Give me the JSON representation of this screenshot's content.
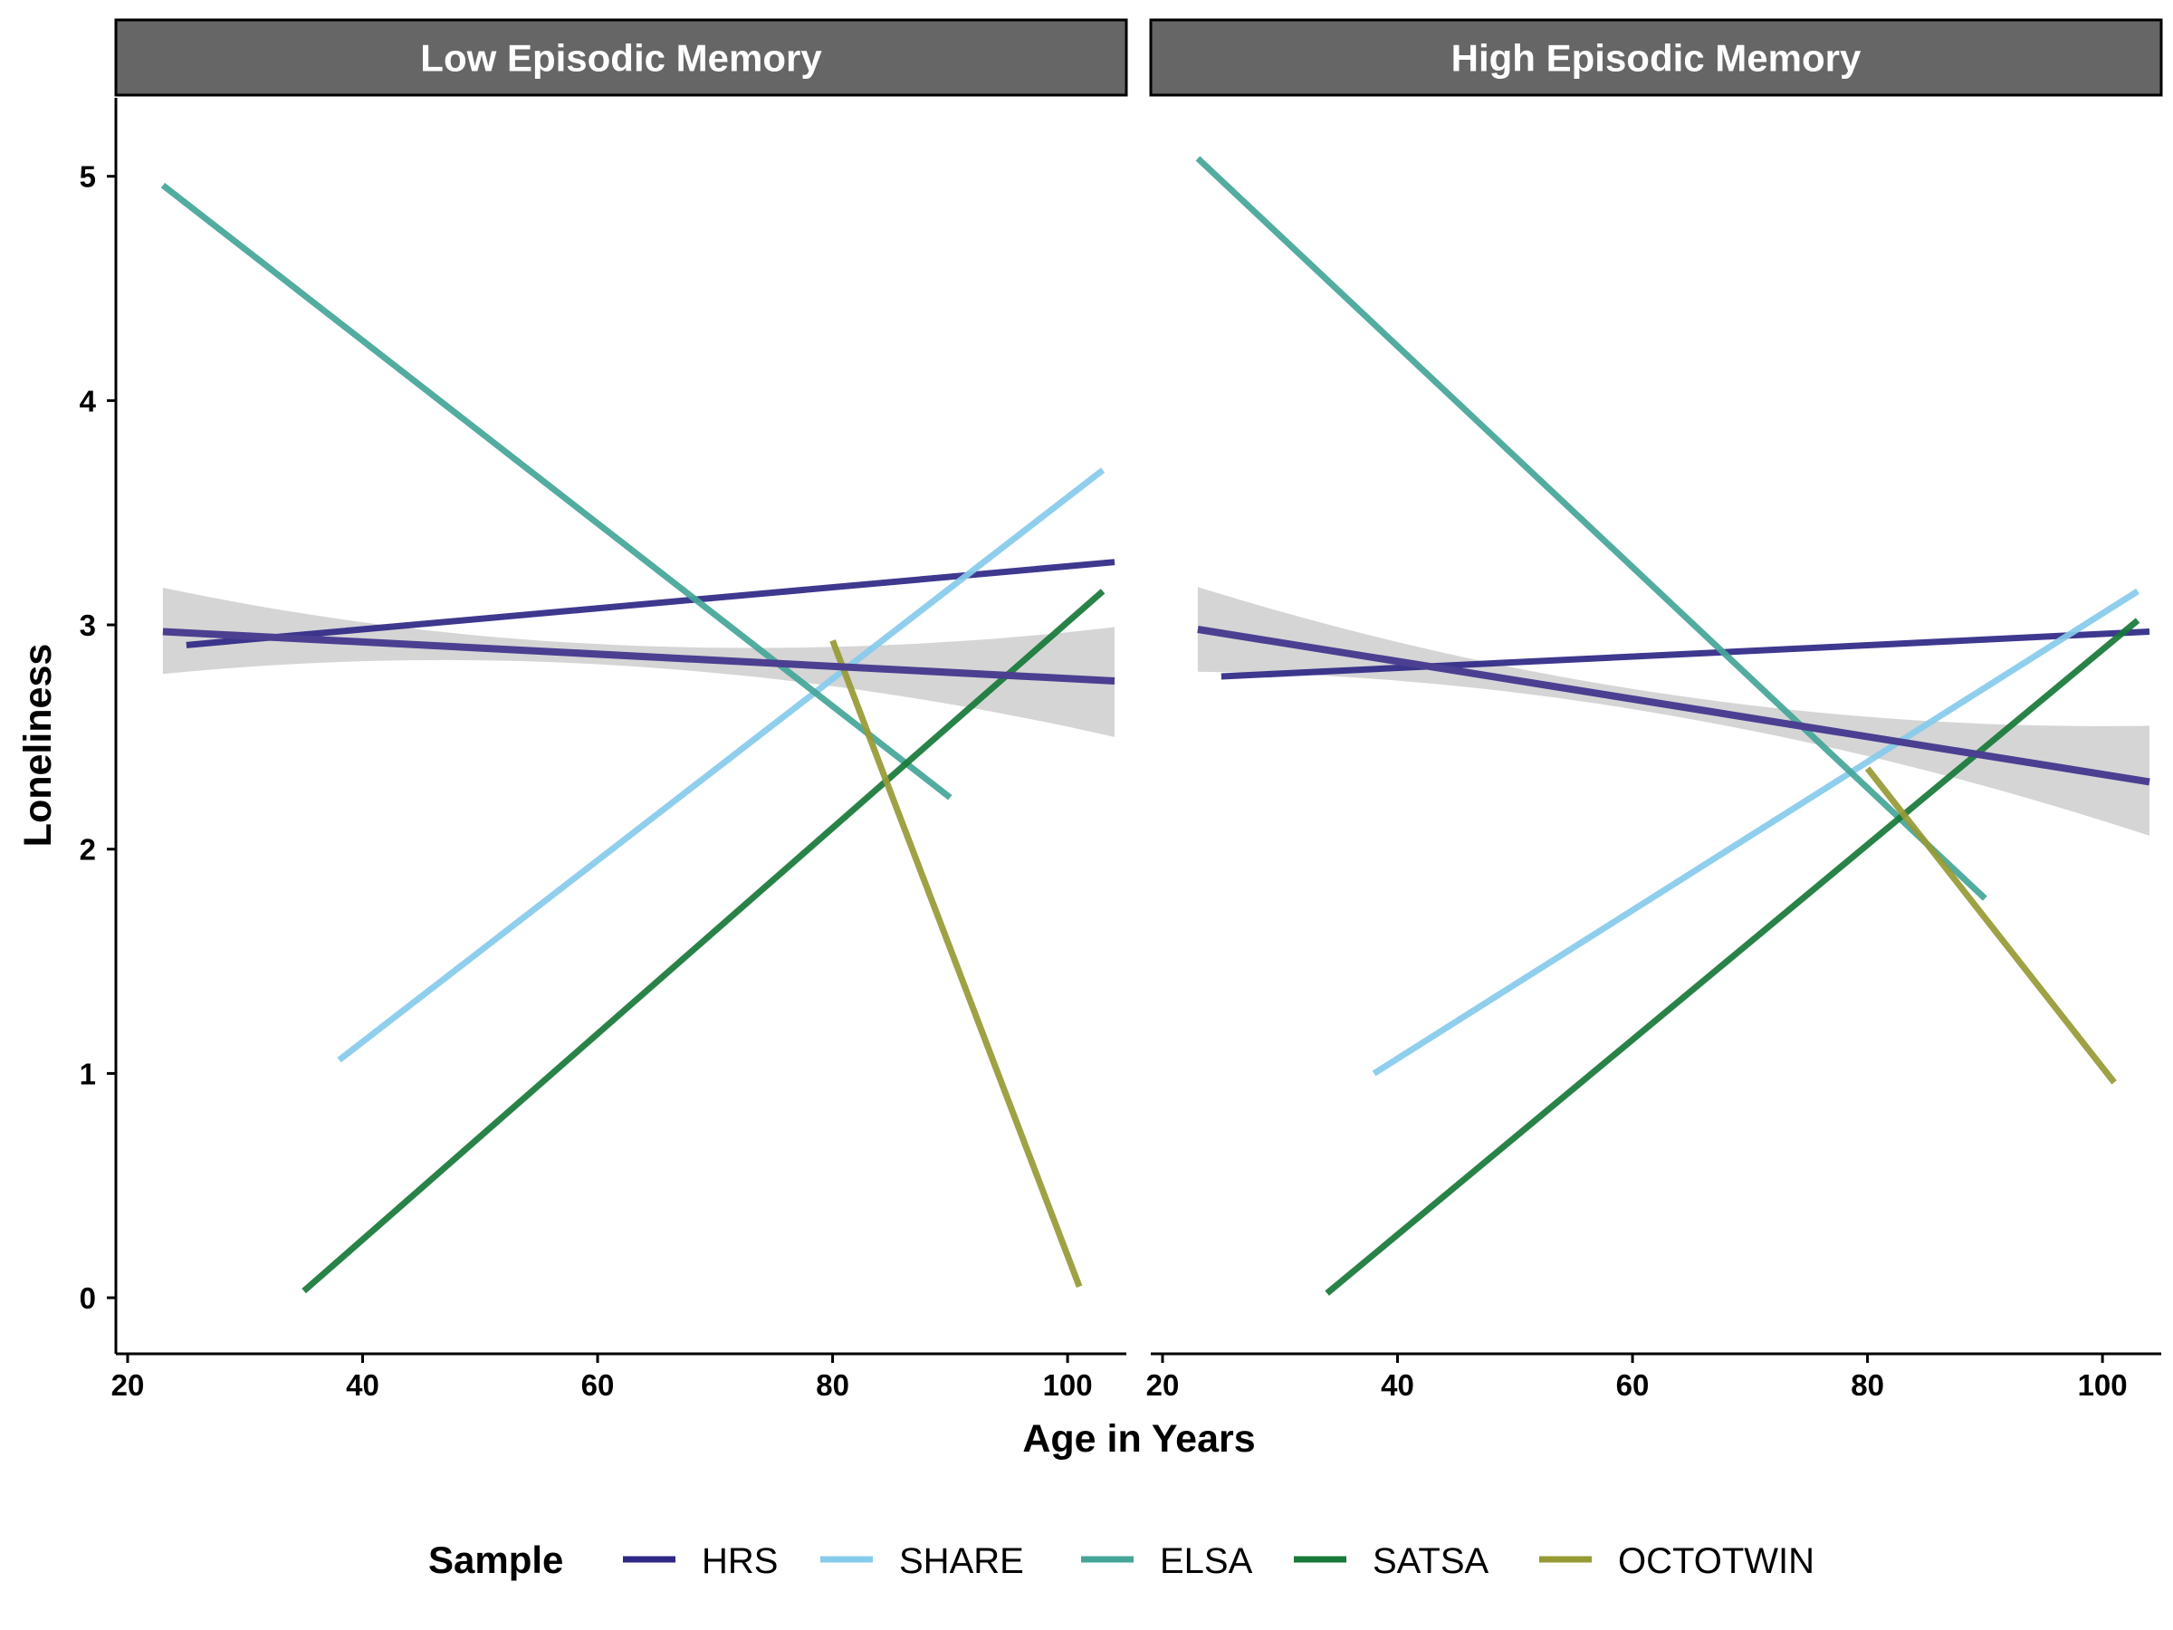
{
  "chart_data": {
    "type": "line",
    "xlabel": "Age in Years",
    "ylabel": "Loneliness",
    "xlim": [
      19,
      105
    ],
    "ylim": [
      -0.25,
      5.35
    ],
    "x_ticks": [
      20,
      40,
      60,
      80,
      100
    ],
    "y_ticks": [
      0,
      1,
      2,
      3,
      4,
      5
    ],
    "grid": false,
    "legend": {
      "title": "Sample",
      "position": "bottom",
      "entries": [
        {
          "name": "HRS",
          "color": "#2e2785"
        },
        {
          "name": "SHARE",
          "color": "#86cbeb"
        },
        {
          "name": "ELSA",
          "color": "#44a598"
        },
        {
          "name": "SATSA",
          "color": "#177838"
        },
        {
          "name": "OCTOTWIN",
          "color": "#969a35"
        }
      ]
    },
    "panels": [
      {
        "title": "Low Episodic Memory",
        "series": [
          {
            "name": "HRS",
            "x": [
              25,
              104
            ],
            "y": [
              2.91,
              3.28
            ]
          },
          {
            "name": "SHARE",
            "x": [
              38,
              103
            ],
            "y": [
              1.06,
              3.69
            ]
          },
          {
            "name": "ELSA",
            "x": [
              23,
              90
            ],
            "y": [
              4.96,
              2.23
            ]
          },
          {
            "name": "SATSA",
            "x": [
              35,
              103
            ],
            "y": [
              0.03,
              3.15
            ]
          },
          {
            "name": "OCTOTWIN",
            "x": [
              80,
              101
            ],
            "y": [
              2.93,
              0.05
            ]
          }
        ],
        "pooled_fit": {
          "x": [
            23,
            104
          ],
          "y": [
            2.97,
            2.75
          ],
          "band_lower": [
            2.71,
            2.5
          ],
          "band_upper": [
            3.24,
            2.99
          ],
          "color": "#4b3f91"
        }
      },
      {
        "title": "High Episodic Memory",
        "series": [
          {
            "name": "HRS",
            "x": [
              25,
              104
            ],
            "y": [
              2.77,
              2.97
            ]
          },
          {
            "name": "SHARE",
            "x": [
              38,
              103
            ],
            "y": [
              1.0,
              3.15
            ]
          },
          {
            "name": "ELSA",
            "x": [
              23,
              90
            ],
            "y": [
              5.08,
              1.78
            ]
          },
          {
            "name": "SATSA",
            "x": [
              34,
              103
            ],
            "y": [
              0.02,
              3.02
            ]
          },
          {
            "name": "OCTOTWIN",
            "x": [
              80,
              101
            ],
            "y": [
              2.36,
              0.96
            ]
          }
        ],
        "pooled_fit": {
          "x": [
            23,
            104
          ],
          "y": [
            2.98,
            2.3
          ],
          "band_lower": [
            2.72,
            2.06
          ],
          "band_upper": [
            3.24,
            2.55
          ],
          "color": "#4b3f91"
        }
      }
    ]
  }
}
